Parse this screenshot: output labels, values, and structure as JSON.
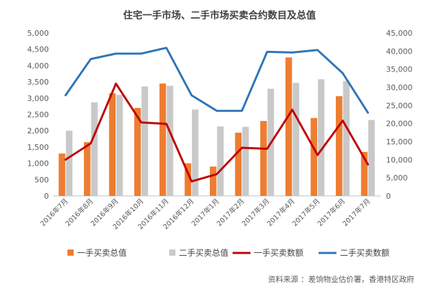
{
  "chart_data": {
    "type": "bar",
    "title": "住宅一手市场、二手市场买卖合约数目及总值",
    "categories": [
      "2016年7月",
      "2016年8月",
      "2016年9月",
      "2016年10月",
      "2016年11月",
      "2016年12月",
      "2017年1月",
      "2017年2月",
      "2017年3月",
      "2017年4月",
      "2017年5月",
      "2017年6月",
      "2017年7月"
    ],
    "left_axis": {
      "ylim": [
        0,
        5000
      ],
      "ticks": [
        "0",
        "500",
        "1,000",
        "1,500",
        "2,000",
        "2,500",
        "3,000",
        "3,500",
        "4,000",
        "4,500",
        "5,000"
      ]
    },
    "right_axis": {
      "ylim": [
        0,
        45000
      ],
      "ticks": [
        "0",
        "5,000",
        "10,000",
        "15,000",
        "20,000",
        "25,000",
        "30,000",
        "35,000",
        "40,000",
        "45,000"
      ]
    },
    "series": [
      {
        "name": "一手买卖总值",
        "type": "bar",
        "axis": "left",
        "color": "#ED7D31",
        "values": [
          1300,
          1650,
          3150,
          2700,
          3450,
          1000,
          900,
          1940,
          2300,
          4250,
          2390,
          3060,
          1350
        ]
      },
      {
        "name": "二手买卖总值",
        "type": "bar",
        "axis": "left",
        "color": "#C9C9C9",
        "values": [
          2000,
          2870,
          3100,
          3360,
          3380,
          2650,
          2130,
          2120,
          3290,
          3470,
          3580,
          3530,
          2330
        ]
      },
      {
        "name": "一手买卖数额",
        "type": "line",
        "axis": "right",
        "color": "#C00000",
        "values": [
          10000,
          14500,
          31000,
          20300,
          19900,
          4000,
          6000,
          13300,
          13000,
          23800,
          11300,
          20800,
          8700
        ]
      },
      {
        "name": "二手买卖数额",
        "type": "line",
        "axis": "right",
        "color": "#2E75B6",
        "values": [
          27800,
          37800,
          39300,
          39300,
          40900,
          27800,
          23500,
          23500,
          39800,
          39600,
          40300,
          33900,
          23000
        ]
      }
    ],
    "legend_position": "bottom",
    "grid": false
  },
  "source_note": "资料来源 ：差饷物业估价署，香港特区政府"
}
